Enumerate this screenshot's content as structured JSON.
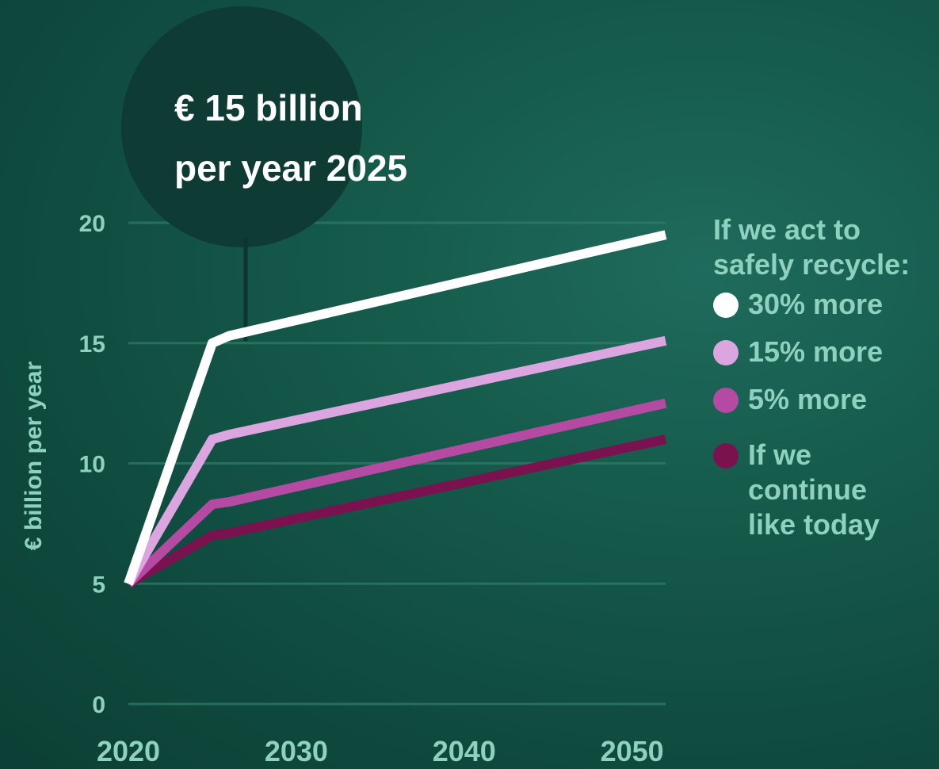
{
  "callout": {
    "line1": "€ 15 billion",
    "line2": "per year 2025",
    "circle_color": "#0e3b33"
  },
  "legend": {
    "title_line1": "If we act to",
    "title_line2": "safely recycle:",
    "items": [
      {
        "label": "30% more",
        "color": "#ffffff"
      },
      {
        "label": "15% more",
        "color": "#dba6e0"
      },
      {
        "label": "5% more",
        "color": "#b54aa3"
      },
      {
        "label": "If we\ncontinue\nlike today",
        "color": "#7a1250"
      }
    ]
  },
  "chart_data": {
    "type": "line",
    "ylabel": "€ billion per year",
    "xlabel": "",
    "xlim": [
      2020,
      2052
    ],
    "ylim": [
      0,
      20
    ],
    "x_ticks": [
      2020,
      2030,
      2040,
      2050
    ],
    "y_ticks": [
      0,
      5,
      10,
      15,
      20
    ],
    "grid": true,
    "legend_position": "right",
    "series": [
      {
        "name": "30% more",
        "color": "#ffffff",
        "x": [
          2020,
          2025,
          2026,
          2052
        ],
        "y": [
          5,
          15,
          15.3,
          19.5
        ]
      },
      {
        "name": "15% more",
        "color": "#dba6e0",
        "x": [
          2020,
          2025,
          2026,
          2052
        ],
        "y": [
          5,
          11,
          11.2,
          15.1
        ]
      },
      {
        "name": "5% more",
        "color": "#b54aa3",
        "x": [
          2020,
          2025,
          2026,
          2052
        ],
        "y": [
          5,
          8.3,
          8.4,
          12.5
        ]
      },
      {
        "name": "If we continue like today",
        "color": "#7a1250",
        "x": [
          2020,
          2025,
          2026,
          2052
        ],
        "y": [
          5,
          7,
          7.1,
          11
        ]
      }
    ]
  }
}
